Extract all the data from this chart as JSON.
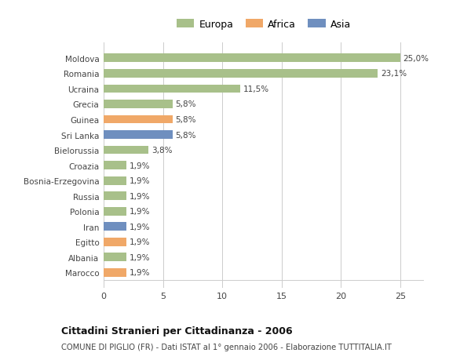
{
  "countries": [
    "Moldova",
    "Romania",
    "Ucraina",
    "Grecia",
    "Guinea",
    "Sri Lanka",
    "Bielorussia",
    "Croazia",
    "Bosnia-Erzegovina",
    "Russia",
    "Polonia",
    "Iran",
    "Egitto",
    "Albania",
    "Marocco"
  ],
  "values": [
    25.0,
    23.1,
    11.5,
    5.8,
    5.8,
    5.8,
    3.8,
    1.9,
    1.9,
    1.9,
    1.9,
    1.9,
    1.9,
    1.9,
    1.9
  ],
  "labels": [
    "25,0%",
    "23,1%",
    "11,5%",
    "5,8%",
    "5,8%",
    "5,8%",
    "3,8%",
    "1,9%",
    "1,9%",
    "1,9%",
    "1,9%",
    "1,9%",
    "1,9%",
    "1,9%",
    "1,9%"
  ],
  "continents": [
    "Europa",
    "Europa",
    "Europa",
    "Europa",
    "Africa",
    "Asia",
    "Europa",
    "Europa",
    "Europa",
    "Europa",
    "Europa",
    "Asia",
    "Africa",
    "Europa",
    "Africa"
  ],
  "colors": {
    "Europa": "#a8c08a",
    "Africa": "#f0a868",
    "Asia": "#6f8fbf"
  },
  "xlim": [
    0,
    27
  ],
  "xticks": [
    0,
    5,
    10,
    15,
    20,
    25
  ],
  "title": "Cittadini Stranieri per Cittadinanza - 2006",
  "subtitle": "COMUNE DI PIGLIO (FR) - Dati ISTAT al 1° gennaio 2006 - Elaborazione TUTTITALIA.IT",
  "bg_color": "#ffffff",
  "grid_color": "#cccccc",
  "bar_height": 0.55
}
